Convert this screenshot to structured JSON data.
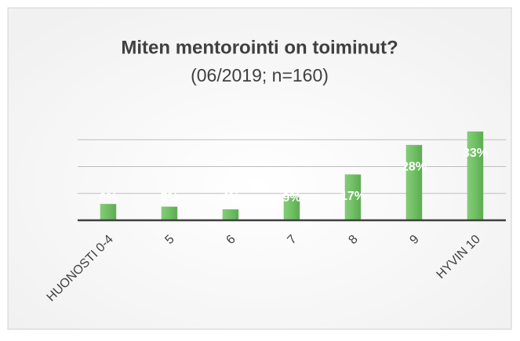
{
  "chart_data": {
    "type": "bar",
    "title": "Miten mentorointi on toiminut?",
    "subtitle": "(06/2019; n=160)",
    "categories": [
      "HUONOSTI 0-4",
      "5",
      "6",
      "7",
      "8",
      "9",
      "HYVIN 10"
    ],
    "values": [
      6,
      5,
      4,
      9,
      17,
      28,
      33
    ],
    "value_labels": [
      "6%",
      "5%",
      "4%",
      "9%",
      "17%",
      "28%",
      "33%"
    ],
    "color": "#6fbf63",
    "ylim": [
      0,
      40
    ],
    "yticks": [
      0,
      10,
      20,
      30
    ],
    "grid": true
  }
}
